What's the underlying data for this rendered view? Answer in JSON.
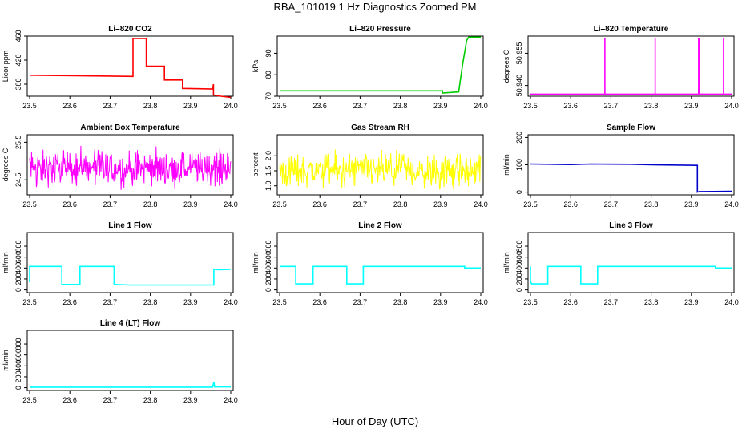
{
  "title": "RBA_101019  1 Hz Diagnostics Zoomed PM",
  "xlabel": "Hour of Day (UTC)",
  "chart_data": [
    {
      "type": "line",
      "title": "Li–820 CO2",
      "ylabel": "Licor ppm",
      "color": "#ff0000",
      "xlim": [
        23.5,
        24.0
      ],
      "ylim": [
        360,
        460
      ],
      "xticks": [
        "23.5",
        "23.6",
        "23.7",
        "23.8",
        "23.9",
        "24.0"
      ],
      "yticks": [
        380,
        420,
        460
      ],
      "x": [
        23.5,
        23.757,
        23.757,
        23.79,
        23.79,
        23.835,
        23.835,
        23.88,
        23.88,
        23.955,
        23.957,
        23.957,
        23.975,
        24.0
      ],
      "y": [
        395,
        393,
        456,
        456,
        410,
        410,
        387,
        387,
        373,
        372,
        380,
        362,
        360,
        358
      ]
    },
    {
      "type": "line",
      "title": "Li–820 Pressure",
      "ylabel": "kPa",
      "color": "#00cc00",
      "xlim": [
        23.5,
        24.0
      ],
      "ylim": [
        70,
        98
      ],
      "xticks": [
        "23.5",
        "23.6",
        "23.7",
        "23.8",
        "23.9",
        "24.0"
      ],
      "yticks": [
        70,
        80,
        90
      ],
      "x": [
        23.5,
        23.905,
        23.905,
        23.945,
        23.955,
        23.965,
        23.97,
        24.0
      ],
      "y": [
        72.5,
        72.5,
        71.5,
        72,
        85,
        96,
        97.5,
        97.5
      ]
    },
    {
      "type": "line",
      "title": "Li–820 Temperature",
      "ylabel": "degrees C",
      "color": "#ff00ff",
      "xlim": [
        23.5,
        24.0
      ],
      "ylim": [
        50.935,
        50.963
      ],
      "xticks": [
        "23.5",
        "23.6",
        "23.7",
        "23.8",
        "23.9",
        "24.0"
      ],
      "yticks": [
        "50.940",
        "50.955"
      ],
      "baseline": 50.936,
      "spikes": [
        23.685,
        23.81,
        23.918,
        23.92,
        23.98
      ],
      "spike_top": 50.962
    },
    {
      "type": "line",
      "title": "Ambient Box Temperature",
      "ylabel": "degrees C",
      "color": "#ff00ff",
      "xlim": [
        23.5,
        24.0
      ],
      "ylim": [
        24.1,
        25.7
      ],
      "xticks": [
        "23.5",
        "23.6",
        "23.7",
        "23.8",
        "23.9",
        "24.0"
      ],
      "yticks": [
        24.5,
        25.5
      ],
      "center": 24.8,
      "spread": 0.45
    },
    {
      "type": "line",
      "title": "Gas Stream RH",
      "ylabel": "percent",
      "color": "#ffff00",
      "xlim": [
        23.5,
        24.0
      ],
      "ylim": [
        0.7,
        2.7
      ],
      "xticks": [
        "23.5",
        "23.6",
        "23.7",
        "23.8",
        "23.9",
        "24.0"
      ],
      "yticks": [
        "1.0",
        "1.5",
        "2.0"
      ],
      "center": 1.5,
      "spread": 0.55
    },
    {
      "type": "line",
      "title": "Sample Flow",
      "ylabel": "ml/min",
      "color": "#0000cc",
      "xlim": [
        23.5,
        24.0
      ],
      "ylim": [
        -10,
        210
      ],
      "xticks": [
        "23.5",
        "23.6",
        "23.7",
        "23.8",
        "23.9",
        "24.0"
      ],
      "yticks": [
        0,
        100,
        200
      ],
      "x": [
        23.5,
        23.6,
        23.65,
        23.75,
        23.8,
        23.915,
        23.915,
        23.92,
        23.93,
        24.0
      ],
      "y": [
        103,
        101,
        103,
        102,
        100,
        98,
        0,
        2,
        2,
        3
      ]
    },
    {
      "type": "line",
      "title": "Line 1 Flow",
      "ylabel": "ml/min",
      "color": "#00ffff",
      "xlim": [
        23.5,
        24.0
      ],
      "ylim": [
        -50,
        1050
      ],
      "xticks": [
        "23.5",
        "23.6",
        "23.7",
        "23.8",
        "23.9",
        "24.0"
      ],
      "yticks": [
        0,
        200,
        400,
        600,
        800
      ],
      "x": [
        23.5,
        23.5,
        23.58,
        23.58,
        23.625,
        23.625,
        23.71,
        23.71,
        23.75,
        23.958,
        23.958,
        23.97,
        24.0
      ],
      "y": [
        140,
        430,
        430,
        100,
        100,
        430,
        430,
        100,
        90,
        90,
        380,
        370,
        375
      ]
    },
    {
      "type": "line",
      "title": "Line 2 Flow",
      "ylabel": "ml/min",
      "color": "#00ffff",
      "xlim": [
        23.5,
        24.0
      ],
      "ylim": [
        -50,
        1050
      ],
      "xticks": [
        "23.5",
        "23.6",
        "23.7",
        "23.8",
        "23.9",
        "24.0"
      ],
      "yticks": [
        0,
        200,
        400,
        600,
        800
      ],
      "x": [
        23.5,
        23.54,
        23.54,
        23.583,
        23.583,
        23.667,
        23.667,
        23.708,
        23.708,
        23.96,
        23.96,
        24.0
      ],
      "y": [
        430,
        430,
        110,
        110,
        430,
        430,
        110,
        110,
        430,
        430,
        400,
        400
      ]
    },
    {
      "type": "line",
      "title": "Line 3 Flow",
      "ylabel": "ml/min",
      "color": "#00ffff",
      "xlim": [
        23.5,
        24.0
      ],
      "ylim": [
        -50,
        1050
      ],
      "xticks": [
        "23.5",
        "23.6",
        "23.7",
        "23.8",
        "23.9",
        "24.0"
      ],
      "yticks": [
        0,
        200,
        400,
        600,
        800
      ],
      "x": [
        23.5,
        23.5,
        23.503,
        23.543,
        23.543,
        23.625,
        23.625,
        23.667,
        23.667,
        23.96,
        23.96,
        24.0
      ],
      "y": [
        430,
        150,
        110,
        110,
        430,
        430,
        110,
        110,
        430,
        430,
        400,
        400
      ]
    },
    {
      "type": "line",
      "title": "Line 4 (LT) Flow",
      "ylabel": "ml/min",
      "color": "#00ffff",
      "xlim": [
        23.5,
        24.0
      ],
      "ylim": [
        -50,
        1050
      ],
      "xticks": [
        "23.5",
        "23.6",
        "23.7",
        "23.8",
        "23.9",
        "24.0"
      ],
      "yticks": [
        0,
        200,
        400,
        600,
        800
      ],
      "x": [
        23.5,
        23.955,
        23.958,
        23.96,
        24.0
      ],
      "y": [
        10,
        10,
        110,
        15,
        15
      ]
    }
  ]
}
